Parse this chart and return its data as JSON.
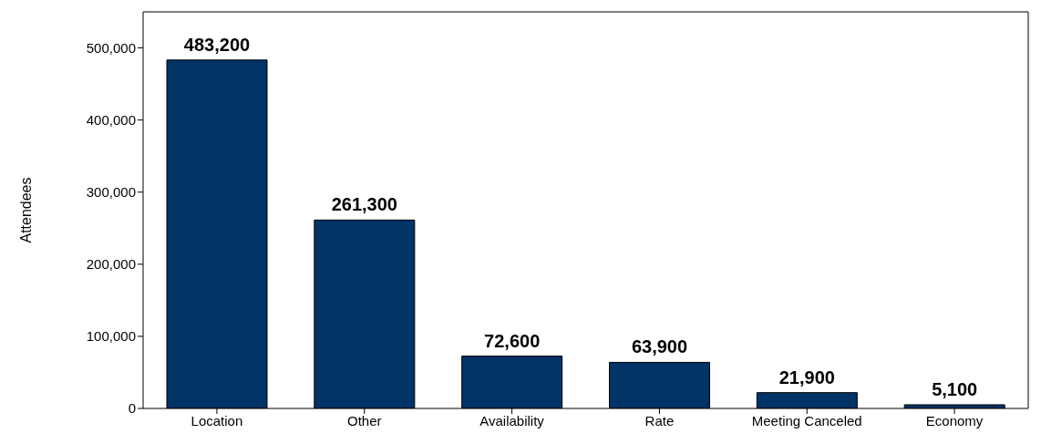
{
  "chart_data": {
    "type": "bar",
    "ylabel": "Attendees",
    "categories": [
      "Location",
      "Other",
      "Availability",
      "Rate",
      "Meeting Canceled",
      "Economy"
    ],
    "values": [
      483200,
      261300,
      72600,
      63900,
      21900,
      5100
    ],
    "color": "#003366",
    "ylim": [
      0,
      550000
    ],
    "yticks": [
      0,
      {
        "value": 100000,
        "label": "100,000"
      },
      {
        "value": 200000,
        "label": "200,000"
      },
      {
        "value": 300000,
        "label": "300,000"
      },
      {
        "value": 400000,
        "label": "400,000"
      },
      {
        "value": 500000,
        "label": "500,000"
      }
    ],
    "value_labels": [
      "483,200",
      "261,300",
      "72,600",
      "63,900",
      "21,900",
      "5,100"
    ],
    "grid": false
  }
}
